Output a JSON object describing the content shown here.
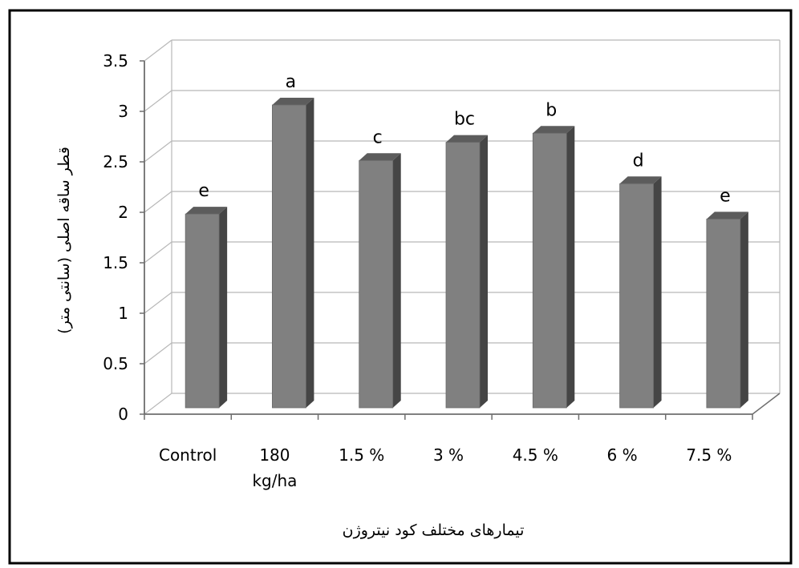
{
  "chart_data": {
    "type": "bar",
    "categories": [
      "Control",
      "180 kg/ha",
      "1.5 %",
      "3 %",
      "4.5 %",
      "6 %",
      "7.5 %"
    ],
    "category_lines": [
      [
        "Control"
      ],
      [
        "180",
        "kg/ha"
      ],
      [
        "1.5 %"
      ],
      [
        "3 %"
      ],
      [
        "4.5 %"
      ],
      [
        "6 %"
      ],
      [
        "7.5 %"
      ]
    ],
    "values": [
      1.92,
      3.0,
      2.45,
      2.63,
      2.72,
      2.22,
      1.87
    ],
    "significance_letters": [
      "e",
      "a",
      "c",
      "bc",
      "b",
      "d",
      "e"
    ],
    "ylim": [
      0,
      3.5
    ],
    "yticks": [
      "0",
      "0.5",
      "1",
      "1.5",
      "2",
      "2.5",
      "3",
      "3.5"
    ],
    "xlabel": "تیمارهای مختلف کود نیتروژن",
    "ylabel": "قطر ساقه اصلی (سانتی متر)",
    "grid": true,
    "style": "3d-column",
    "colors": {
      "bar_front": "#808080",
      "bar_side": "#454545",
      "bar_top": "#5c5c5c",
      "grid": "#b8b8b8",
      "axis": "#6e6e6e"
    }
  }
}
